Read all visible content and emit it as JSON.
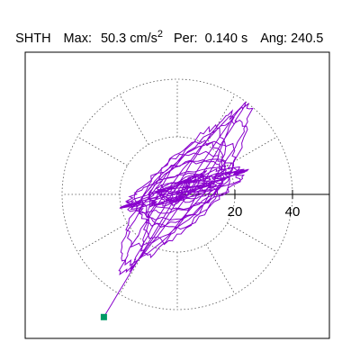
{
  "header": {
    "station": "SHTH",
    "max_label": "Max:",
    "max_value": "50.3",
    "max_unit": "cm/s",
    "max_unit_exp": "2",
    "per_label": "Per:",
    "per_value": "0.140 s",
    "ang_label": "Ang:",
    "ang_value": "240.5"
  },
  "chart_data": {
    "type": "scatter",
    "description_note": "",
    "title": "SHTH   Max:  50.3 cm/s2  Per:  0.140 s   Ang: 240.5",
    "xlabel": "",
    "ylabel": "",
    "radial_ticks": [
      {
        "value": 20,
        "label": "20"
      },
      {
        "value": 40,
        "label": "40"
      }
    ],
    "grid": "polar dotted (circles at 20, 40; spokes every 30 deg)",
    "xlim": [
      -53,
      53
    ],
    "ylim": [
      -50,
      50
    ],
    "trace_color": "#8800cc",
    "end_marker_color": "#009966",
    "end_point": {
      "x": -25.5,
      "y": -42.6
    },
    "max_amplitude": 50.3
  }
}
